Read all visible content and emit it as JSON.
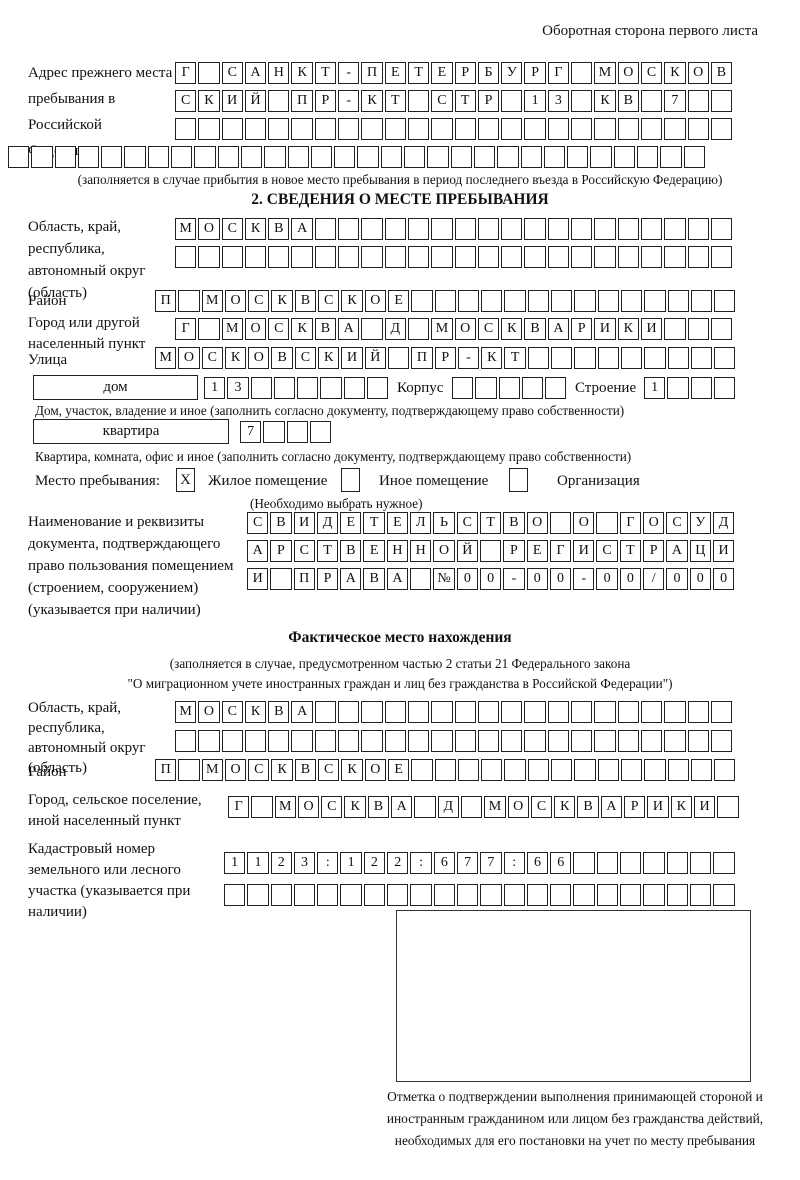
{
  "page": {
    "header_note": "Оборотная сторона первого листа"
  },
  "prev_address": {
    "label": "Адрес прежнего места пребывания в Российской Федерации",
    "row1": {
      "text": "Г САНКТ-ПЕТЕРБУРГ МОСКОВ",
      "len": 24
    },
    "row2": {
      "text": "СКИЙ ПР-КТ СТР 13 КВ 7",
      "len": 24
    },
    "row3": {
      "text": "",
      "len": 24
    },
    "row4": {
      "text": "",
      "len": 30
    },
    "caption": "(заполняется в случае прибытия в новое место пребывания в период последнего въезда в Российскую Федерацию)"
  },
  "section2": {
    "title": "2. СВЕДЕНИЯ О МЕСТЕ ПРЕБЫВАНИЯ",
    "oblast_label": "Область, край, республика, автономный округ (область)",
    "oblast_row1": {
      "text": "МОСКВА",
      "len": 24
    },
    "oblast_row2": {
      "text": "",
      "len": 24
    },
    "rayon_label": "Район",
    "rayon_row": {
      "text": "П МОСКВСКОЕ",
      "len": 25
    },
    "gorod_label": "Город или другой населенный пункт",
    "gorod_row": {
      "text": "Г МОСКВА Д МОСКВАРИКИ",
      "len": 24
    },
    "ulitsa_label": "Улица",
    "ulitsa_row": {
      "text": "МОСКОВСКИЙ ПР-КТ",
      "len": 25
    },
    "dom_label": "дом",
    "dom_row": {
      "text": "13",
      "len": 8
    },
    "korpus_label": "Корпус",
    "korpus_row": {
      "text": "",
      "len": 5
    },
    "stroenie_label": "Строение",
    "stroenie_row": {
      "text": "1",
      "len": 4
    },
    "dom_caption": "Дом, участок, владение и иное (заполнить согласно документу, подтверждающему право собственности)",
    "kvartira_label": "квартира",
    "kvartira_row": {
      "text": "7",
      "len": 4
    },
    "kvartira_caption": "Квартира, комната, офис и иное (заполнить согласно документу, подтверждающему право собственности)",
    "mesto_label": "Место пребывания:",
    "options": [
      {
        "label": "Жилое помещение",
        "box": {
          "text": "X",
          "len": 1
        }
      },
      {
        "label": "Иное помещение",
        "box": {
          "text": "",
          "len": 1
        }
      },
      {
        "label": "Организация",
        "box": {
          "text": "",
          "len": 1
        }
      }
    ],
    "options_caption": "(Необходимо выбрать нужное)",
    "doc_label": "Наименование и реквизиты документа, подтверждающего право пользования помещением (строением, сооружением) (указывается при наличии)",
    "doc_row1": {
      "text": "СВИДЕТЕЛЬСТВО О ГОСУД",
      "len": 21
    },
    "doc_row2": {
      "text": "АРСТВЕННОЙ РЕГИСТРАЦИ",
      "len": 21
    },
    "doc_row3": {
      "text": "И ПРАВА №00-00-00/000",
      "len": 21
    }
  },
  "fact": {
    "title": "Фактическое место нахождения",
    "caption1": "(заполняется в случае, предусмотренном частью 2 статьи 21 Федерального закона",
    "caption2": "\"О миграционном учете иностранных граждан и лиц без гражданства в Российской Федерации\")",
    "oblast_label": "Область, край, республика, автономный округ (область)",
    "oblast_row1": {
      "text": "МОСКВА",
      "len": 24
    },
    "oblast_row2": {
      "text": "",
      "len": 24
    },
    "rayon_label": "Район",
    "rayon_row": {
      "text": "П МОСКВСКОЕ",
      "len": 25
    },
    "gorod_label": "Город, сельское поселение, иной населенный пункт",
    "gorod_row": {
      "text": "Г МОСКВА Д МОСКВАРИКИ",
      "len": 22
    },
    "kadastr_label": "Кадастровый номер земельного или лесного участка (указывается при наличии)",
    "kadastr_row1": {
      "text": "1123:122:677:66",
      "len": 22
    },
    "kadastr_row2": {
      "text": "",
      "len": 22
    },
    "stamp_caption": "Отметка о подтверждении выполнения принимающей стороной и иностранным гражданином или лицом без гражданства действий, необходимых для его постановки на учет по месту пребывания"
  }
}
